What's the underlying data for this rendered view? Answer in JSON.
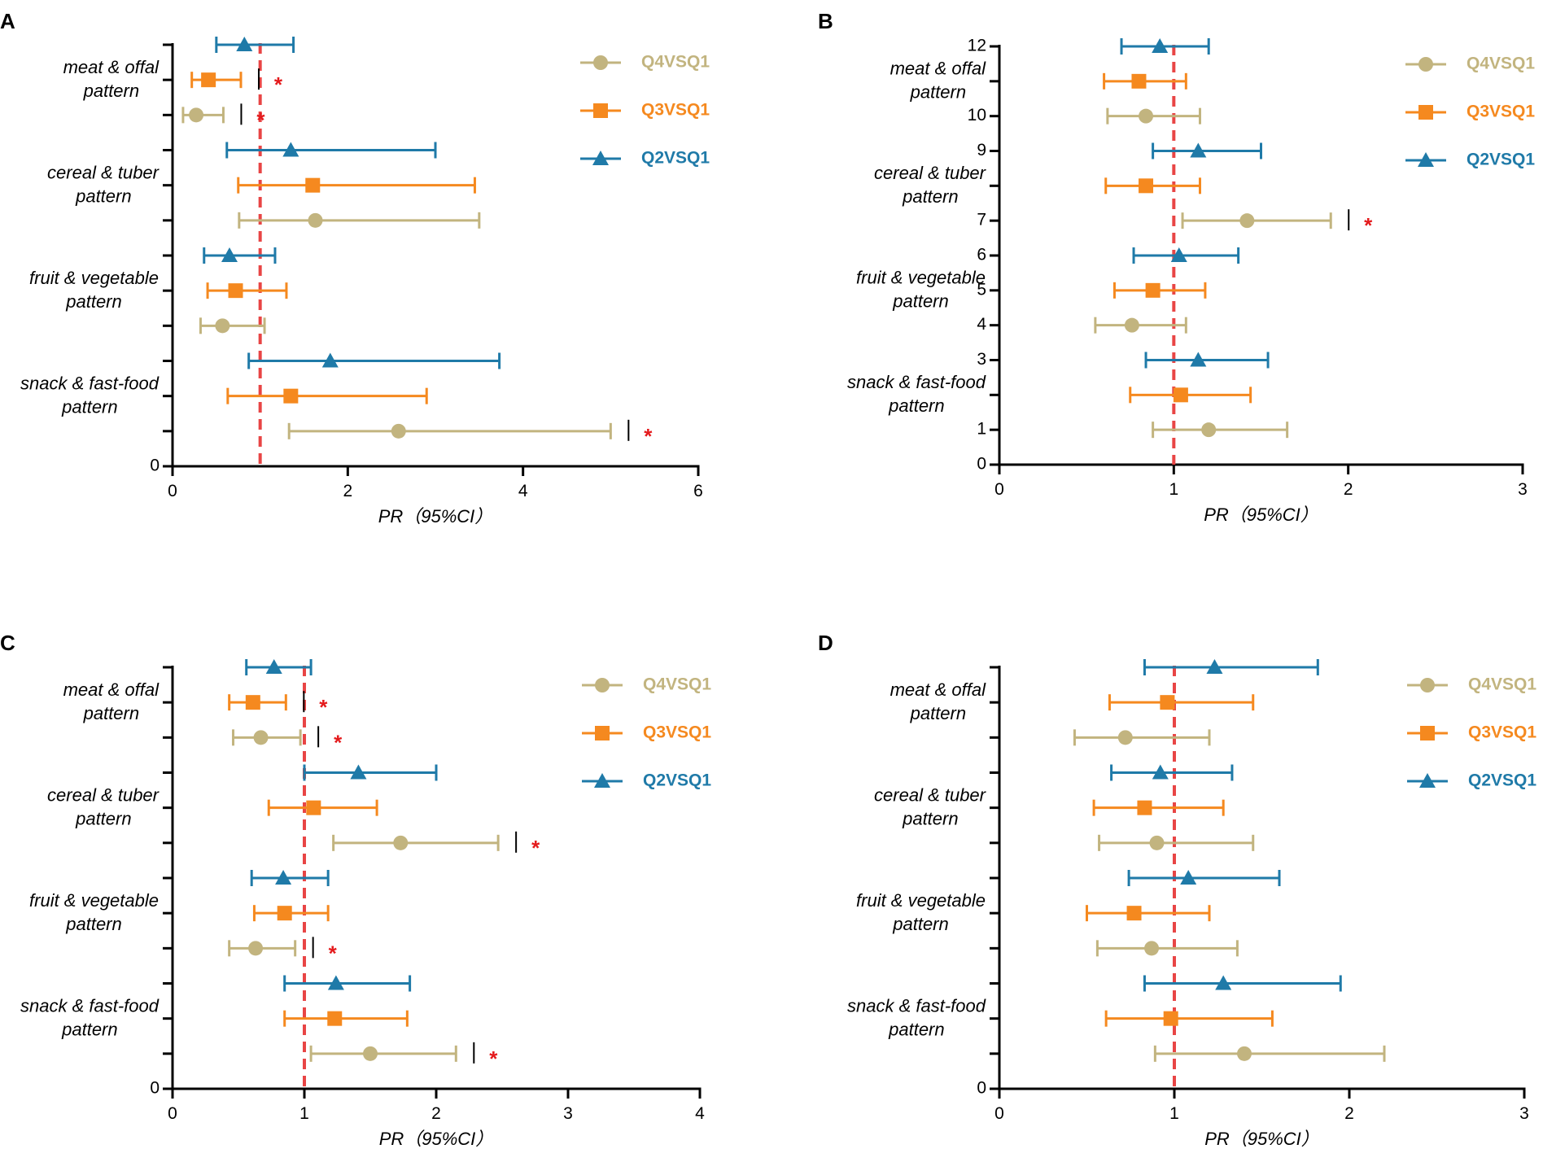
{
  "colors": {
    "Q4VSQ1": "#c2b47f",
    "Q3VSQ1": "#f5891f",
    "Q2VSQ1": "#1f7aa8",
    "ref_line": "#e84545",
    "axis": "#000000",
    "significance": "#e41a1c"
  },
  "chart_data": [
    {
      "panel": "A",
      "type": "forest",
      "xlabel": "PR（95%CI）",
      "xlim": [
        0,
        6
      ],
      "xticks": [
        "0",
        "2",
        "4",
        "6"
      ],
      "ylim": [
        0,
        12
      ],
      "yticks": [
        "0"
      ],
      "ref_line": 1,
      "groups": [
        {
          "label": [
            "meat & offal",
            "pattern"
          ],
          "y": 11
        },
        {
          "label": [
            "cereal & tuber",
            "pattern"
          ],
          "y": 8
        },
        {
          "label": [
            "fruit & vegetable",
            "pattern"
          ],
          "y": 5
        },
        {
          "label": [
            "snack & fast-food",
            "pattern"
          ],
          "y": 2
        }
      ],
      "legend": [
        "Q4VSQ1",
        "Q3VSQ1",
        "Q2VSQ1"
      ],
      "points": [
        {
          "series": "Q2VSQ1",
          "y": 12,
          "est": 0.82,
          "lo": 0.5,
          "hi": 1.38
        },
        {
          "series": "Q3VSQ1",
          "y": 11,
          "est": 0.41,
          "lo": 0.22,
          "hi": 0.78,
          "sig": true
        },
        {
          "series": "Q4VSQ1",
          "y": 10,
          "est": 0.27,
          "lo": 0.12,
          "hi": 0.58,
          "sig": true
        },
        {
          "series": "Q2VSQ1",
          "y": 9,
          "est": 1.35,
          "lo": 0.62,
          "hi": 3.0
        },
        {
          "series": "Q3VSQ1",
          "y": 8,
          "est": 1.6,
          "lo": 0.75,
          "hi": 3.45
        },
        {
          "series": "Q4VSQ1",
          "y": 7,
          "est": 1.63,
          "lo": 0.76,
          "hi": 3.5
        },
        {
          "series": "Q2VSQ1",
          "y": 6,
          "est": 0.65,
          "lo": 0.36,
          "hi": 1.17
        },
        {
          "series": "Q3VSQ1",
          "y": 5,
          "est": 0.72,
          "lo": 0.4,
          "hi": 1.3
        },
        {
          "series": "Q4VSQ1",
          "y": 4,
          "est": 0.57,
          "lo": 0.32,
          "hi": 1.05
        },
        {
          "series": "Q2VSQ1",
          "y": 3,
          "est": 1.8,
          "lo": 0.87,
          "hi": 3.73
        },
        {
          "series": "Q3VSQ1",
          "y": 2,
          "est": 1.35,
          "lo": 0.63,
          "hi": 2.9
        },
        {
          "series": "Q4VSQ1",
          "y": 1,
          "est": 2.58,
          "lo": 1.33,
          "hi": 5.0,
          "sig": true
        }
      ],
      "sig_label": "*"
    },
    {
      "panel": "B",
      "type": "forest",
      "xlabel": "PR（95%CI）",
      "xlim": [
        0,
        3
      ],
      "xticks": [
        "0",
        "1",
        "2",
        "3"
      ],
      "ylim": [
        0,
        12
      ],
      "yticks": [
        "0",
        "1",
        "3",
        "4",
        "5",
        "6",
        "7",
        "9",
        "10",
        "12"
      ],
      "ref_line": 1,
      "groups": [
        {
          "label": [
            "meat & offal",
            "pattern"
          ],
          "y": 11
        },
        {
          "label": [
            "cereal & tuber",
            "pattern"
          ],
          "y": 8
        },
        {
          "label": [
            "fruit & vegetable",
            "pattern"
          ],
          "y": 5
        },
        {
          "label": [
            "snack & fast-food",
            "pattern"
          ],
          "y": 2
        }
      ],
      "legend": [
        "Q4VSQ1",
        "Q3VSQ1",
        "Q2VSQ1"
      ],
      "points": [
        {
          "series": "Q2VSQ1",
          "y": 12,
          "est": 0.92,
          "lo": 0.7,
          "hi": 1.2
        },
        {
          "series": "Q3VSQ1",
          "y": 11,
          "est": 0.8,
          "lo": 0.6,
          "hi": 1.07
        },
        {
          "series": "Q4VSQ1",
          "y": 10,
          "est": 0.84,
          "lo": 0.62,
          "hi": 1.15
        },
        {
          "series": "Q2VSQ1",
          "y": 9,
          "est": 1.14,
          "lo": 0.88,
          "hi": 1.5
        },
        {
          "series": "Q3VSQ1",
          "y": 8,
          "est": 0.84,
          "lo": 0.61,
          "hi": 1.15
        },
        {
          "series": "Q4VSQ1",
          "y": 7,
          "est": 1.42,
          "lo": 1.05,
          "hi": 1.9,
          "sig": true
        },
        {
          "series": "Q2VSQ1",
          "y": 6,
          "est": 1.03,
          "lo": 0.77,
          "hi": 1.37
        },
        {
          "series": "Q3VSQ1",
          "y": 5,
          "est": 0.88,
          "lo": 0.66,
          "hi": 1.18
        },
        {
          "series": "Q4VSQ1",
          "y": 4,
          "est": 0.76,
          "lo": 0.55,
          "hi": 1.07
        },
        {
          "series": "Q2VSQ1",
          "y": 3,
          "est": 1.14,
          "lo": 0.84,
          "hi": 1.54
        },
        {
          "series": "Q3VSQ1",
          "y": 2,
          "est": 1.04,
          "lo": 0.75,
          "hi": 1.44
        },
        {
          "series": "Q4VSQ1",
          "y": 1,
          "est": 1.2,
          "lo": 0.88,
          "hi": 1.65
        }
      ],
      "sig_label": "*"
    },
    {
      "panel": "C",
      "type": "forest",
      "xlabel": "PR（95%CI）",
      "xlim": [
        0,
        4
      ],
      "xticks": [
        "0",
        "1",
        "2",
        "3",
        "4"
      ],
      "ylim": [
        0,
        12
      ],
      "yticks": [
        "0"
      ],
      "ref_line": 1,
      "groups": [
        {
          "label": [
            "meat & offal",
            "pattern"
          ],
          "y": 11
        },
        {
          "label": [
            "cereal & tuber",
            "pattern"
          ],
          "y": 8
        },
        {
          "label": [
            "fruit & vegetable",
            "pattern"
          ],
          "y": 5
        },
        {
          "label": [
            "snack & fast-food",
            "pattern"
          ],
          "y": 2
        }
      ],
      "legend": [
        "Q4VSQ1",
        "Q3VSQ1",
        "Q2VSQ1"
      ],
      "points": [
        {
          "series": "Q2VSQ1",
          "y": 12,
          "est": 0.77,
          "lo": 0.56,
          "hi": 1.05
        },
        {
          "series": "Q3VSQ1",
          "y": 11,
          "est": 0.61,
          "lo": 0.43,
          "hi": 0.86,
          "sig": true
        },
        {
          "series": "Q4VSQ1",
          "y": 10,
          "est": 0.67,
          "lo": 0.46,
          "hi": 0.97,
          "sig": true
        },
        {
          "series": "Q2VSQ1",
          "y": 9,
          "est": 1.41,
          "lo": 1.0,
          "hi": 2.0
        },
        {
          "series": "Q3VSQ1",
          "y": 8,
          "est": 1.07,
          "lo": 0.73,
          "hi": 1.55
        },
        {
          "series": "Q4VSQ1",
          "y": 7,
          "est": 1.73,
          "lo": 1.22,
          "hi": 2.47,
          "sig": true
        },
        {
          "series": "Q2VSQ1",
          "y": 6,
          "est": 0.84,
          "lo": 0.6,
          "hi": 1.18
        },
        {
          "series": "Q3VSQ1",
          "y": 5,
          "est": 0.85,
          "lo": 0.62,
          "hi": 1.18
        },
        {
          "series": "Q4VSQ1",
          "y": 4,
          "est": 0.63,
          "lo": 0.43,
          "hi": 0.93,
          "sig": true
        },
        {
          "series": "Q2VSQ1",
          "y": 3,
          "est": 1.24,
          "lo": 0.85,
          "hi": 1.8
        },
        {
          "series": "Q3VSQ1",
          "y": 2,
          "est": 1.23,
          "lo": 0.85,
          "hi": 1.78
        },
        {
          "series": "Q4VSQ1",
          "y": 1,
          "est": 1.5,
          "lo": 1.05,
          "hi": 2.15,
          "sig": true
        }
      ],
      "sig_label": "*"
    },
    {
      "panel": "D",
      "type": "forest",
      "xlabel": "PR（95%CI）",
      "xlim": [
        0,
        3
      ],
      "xticks": [
        "0",
        "1",
        "2",
        "3"
      ],
      "ylim": [
        0,
        12
      ],
      "yticks": [
        "0"
      ],
      "ref_line": 1,
      "groups": [
        {
          "label": [
            "meat & offal",
            "pattern"
          ],
          "y": 11
        },
        {
          "label": [
            "cereal & tuber",
            "pattern"
          ],
          "y": 8
        },
        {
          "label": [
            "fruit & vegetable",
            "pattern"
          ],
          "y": 5
        },
        {
          "label": [
            "snack & fast-food",
            "pattern"
          ],
          "y": 2
        }
      ],
      "legend": [
        "Q4VSQ1",
        "Q3VSQ1",
        "Q2VSQ1"
      ],
      "points": [
        {
          "series": "Q2VSQ1",
          "y": 12,
          "est": 1.23,
          "lo": 0.83,
          "hi": 1.82
        },
        {
          "series": "Q3VSQ1",
          "y": 11,
          "est": 0.96,
          "lo": 0.63,
          "hi": 1.45
        },
        {
          "series": "Q4VSQ1",
          "y": 10,
          "est": 0.72,
          "lo": 0.43,
          "hi": 1.2
        },
        {
          "series": "Q2VSQ1",
          "y": 9,
          "est": 0.92,
          "lo": 0.64,
          "hi": 1.33
        },
        {
          "series": "Q3VSQ1",
          "y": 8,
          "est": 0.83,
          "lo": 0.54,
          "hi": 1.28
        },
        {
          "series": "Q4VSQ1",
          "y": 7,
          "est": 0.9,
          "lo": 0.57,
          "hi": 1.45
        },
        {
          "series": "Q2VSQ1",
          "y": 6,
          "est": 1.08,
          "lo": 0.74,
          "hi": 1.6
        },
        {
          "series": "Q3VSQ1",
          "y": 5,
          "est": 0.77,
          "lo": 0.5,
          "hi": 1.2
        },
        {
          "series": "Q4VSQ1",
          "y": 4,
          "est": 0.87,
          "lo": 0.56,
          "hi": 1.36
        },
        {
          "series": "Q2VSQ1",
          "y": 3,
          "est": 1.28,
          "lo": 0.83,
          "hi": 1.95
        },
        {
          "series": "Q3VSQ1",
          "y": 2,
          "est": 0.98,
          "lo": 0.61,
          "hi": 1.56
        },
        {
          "series": "Q4VSQ1",
          "y": 1,
          "est": 1.4,
          "lo": 0.89,
          "hi": 2.2
        }
      ],
      "sig_label": "*"
    }
  ]
}
